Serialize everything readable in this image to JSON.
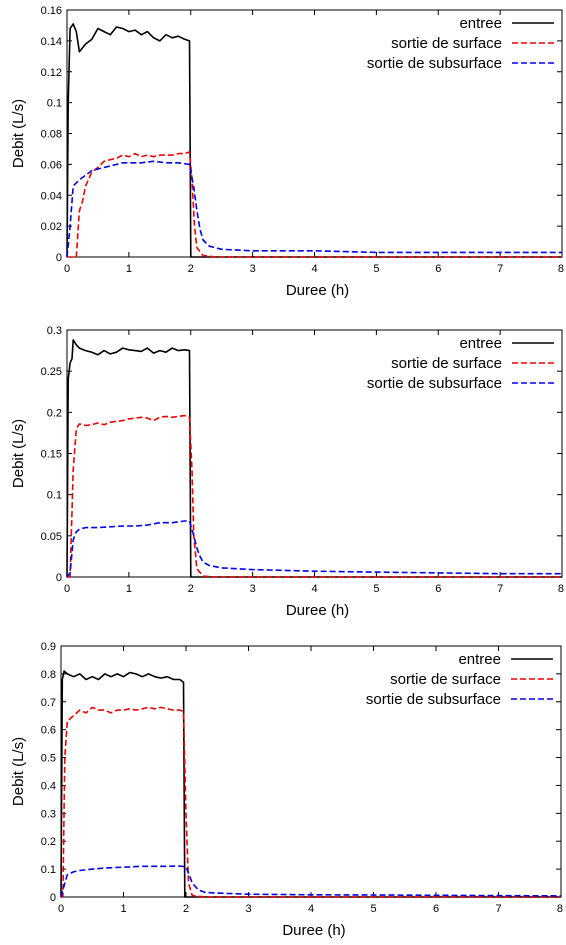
{
  "chart_data": [
    {
      "type": "line",
      "xlabel": "Duree (h)",
      "ylabel": "Debit (L/s)",
      "xlim": [
        0,
        8
      ],
      "ylim": [
        0,
        0.16
      ],
      "xticks": [
        "0",
        "1",
        "2",
        "3",
        "4",
        "5",
        "6",
        "7",
        "8"
      ],
      "yticks": [
        "0",
        "0.02",
        "0.04",
        "0.06",
        "0.08",
        "0.1",
        "0.12",
        "0.14",
        "0.16"
      ],
      "legend_position": "top-right",
      "grid": false,
      "series": [
        {
          "name": "entree",
          "color": "#000000",
          "style": "solid",
          "points": [
            [
              0,
              0
            ],
            [
              0.02,
              0.1
            ],
            [
              0.05,
              0.148
            ],
            [
              0.1,
              0.151
            ],
            [
              0.15,
              0.146
            ],
            [
              0.2,
              0.133
            ],
            [
              0.3,
              0.138
            ],
            [
              0.4,
              0.141
            ],
            [
              0.5,
              0.148
            ],
            [
              0.6,
              0.146
            ],
            [
              0.7,
              0.144
            ],
            [
              0.8,
              0.149
            ],
            [
              0.9,
              0.148
            ],
            [
              1.0,
              0.146
            ],
            [
              1.1,
              0.147
            ],
            [
              1.2,
              0.144
            ],
            [
              1.3,
              0.146
            ],
            [
              1.4,
              0.142
            ],
            [
              1.5,
              0.14
            ],
            [
              1.6,
              0.144
            ],
            [
              1.7,
              0.142
            ],
            [
              1.8,
              0.143
            ],
            [
              1.9,
              0.141
            ],
            [
              1.98,
              0.14
            ],
            [
              2.0,
              0.0
            ],
            [
              8.0,
              0.0
            ]
          ]
        },
        {
          "name": "sortie de surface",
          "color": "#ee0000",
          "style": "dashed",
          "points": [
            [
              0,
              0
            ],
            [
              0.15,
              0.0
            ],
            [
              0.2,
              0.03
            ],
            [
              0.25,
              0.036
            ],
            [
              0.3,
              0.046
            ],
            [
              0.4,
              0.055
            ],
            [
              0.5,
              0.058
            ],
            [
              0.6,
              0.062
            ],
            [
              0.7,
              0.063
            ],
            [
              0.8,
              0.064
            ],
            [
              0.9,
              0.066
            ],
            [
              1.0,
              0.065
            ],
            [
              1.1,
              0.067
            ],
            [
              1.2,
              0.065
            ],
            [
              1.3,
              0.066
            ],
            [
              1.4,
              0.065
            ],
            [
              1.5,
              0.066
            ],
            [
              1.6,
              0.066
            ],
            [
              1.7,
              0.066
            ],
            [
              1.8,
              0.067
            ],
            [
              1.9,
              0.067
            ],
            [
              1.98,
              0.068
            ],
            [
              2.02,
              0.05
            ],
            [
              2.06,
              0.02
            ],
            [
              2.1,
              0.006
            ],
            [
              2.2,
              0.001
            ],
            [
              2.4,
              0.0
            ],
            [
              8.0,
              0.0
            ]
          ]
        },
        {
          "name": "sortie de subsurface",
          "color": "#0000ee",
          "style": "dashed",
          "points": [
            [
              0,
              0
            ],
            [
              0.05,
              0.02
            ],
            [
              0.1,
              0.046
            ],
            [
              0.2,
              0.05
            ],
            [
              0.3,
              0.053
            ],
            [
              0.4,
              0.056
            ],
            [
              0.5,
              0.057
            ],
            [
              0.6,
              0.058
            ],
            [
              0.7,
              0.059
            ],
            [
              0.8,
              0.06
            ],
            [
              0.9,
              0.061
            ],
            [
              1.0,
              0.061
            ],
            [
              1.2,
              0.061
            ],
            [
              1.4,
              0.062
            ],
            [
              1.6,
              0.061
            ],
            [
              1.8,
              0.061
            ],
            [
              1.98,
              0.06
            ],
            [
              2.05,
              0.045
            ],
            [
              2.1,
              0.03
            ],
            [
              2.15,
              0.018
            ],
            [
              2.2,
              0.011
            ],
            [
              2.3,
              0.007
            ],
            [
              2.5,
              0.005
            ],
            [
              3.0,
              0.004
            ],
            [
              4.0,
              0.004
            ],
            [
              5.0,
              0.003
            ],
            [
              6.0,
              0.003
            ],
            [
              7.0,
              0.003
            ],
            [
              8.0,
              0.003
            ]
          ]
        }
      ]
    },
    {
      "type": "line",
      "xlabel": "Duree (h)",
      "ylabel": "Debit (L/s)",
      "xlim": [
        0,
        8
      ],
      "ylim": [
        0,
        0.3
      ],
      "xticks": [
        "0",
        "1",
        "2",
        "3",
        "4",
        "5",
        "6",
        "7",
        "8"
      ],
      "yticks": [
        "0",
        "0.05",
        "0.1",
        "0.15",
        "0.2",
        "0.25",
        "0.3"
      ],
      "legend_position": "top-right",
      "grid": false,
      "series": [
        {
          "name": "entree",
          "color": "#000000",
          "style": "solid",
          "points": [
            [
              0,
              0
            ],
            [
              0.02,
              0.24
            ],
            [
              0.05,
              0.26
            ],
            [
              0.08,
              0.265
            ],
            [
              0.1,
              0.288
            ],
            [
              0.15,
              0.282
            ],
            [
              0.2,
              0.278
            ],
            [
              0.3,
              0.275
            ],
            [
              0.4,
              0.273
            ],
            [
              0.5,
              0.27
            ],
            [
              0.6,
              0.275
            ],
            [
              0.7,
              0.271
            ],
            [
              0.8,
              0.273
            ],
            [
              0.9,
              0.278
            ],
            [
              1.0,
              0.276
            ],
            [
              1.1,
              0.275
            ],
            [
              1.2,
              0.274
            ],
            [
              1.3,
              0.278
            ],
            [
              1.4,
              0.272
            ],
            [
              1.5,
              0.275
            ],
            [
              1.6,
              0.273
            ],
            [
              1.7,
              0.278
            ],
            [
              1.8,
              0.275
            ],
            [
              1.9,
              0.276
            ],
            [
              1.98,
              0.275
            ],
            [
              2.0,
              0.0
            ],
            [
              8.0,
              0.0
            ]
          ]
        },
        {
          "name": "sortie de surface",
          "color": "#ee0000",
          "style": "dashed",
          "points": [
            [
              0,
              0
            ],
            [
              0.05,
              0.0
            ],
            [
              0.1,
              0.13
            ],
            [
              0.15,
              0.18
            ],
            [
              0.2,
              0.186
            ],
            [
              0.3,
              0.184
            ],
            [
              0.4,
              0.185
            ],
            [
              0.5,
              0.187
            ],
            [
              0.6,
              0.185
            ],
            [
              0.7,
              0.188
            ],
            [
              0.8,
              0.189
            ],
            [
              0.9,
              0.19
            ],
            [
              1.0,
              0.192
            ],
            [
              1.1,
              0.193
            ],
            [
              1.2,
              0.194
            ],
            [
              1.3,
              0.193
            ],
            [
              1.4,
              0.19
            ],
            [
              1.5,
              0.194
            ],
            [
              1.6,
              0.195
            ],
            [
              1.7,
              0.194
            ],
            [
              1.8,
              0.195
            ],
            [
              1.9,
              0.196
            ],
            [
              1.98,
              0.194
            ],
            [
              2.02,
              0.13
            ],
            [
              2.05,
              0.05
            ],
            [
              2.1,
              0.01
            ],
            [
              2.2,
              0.001
            ],
            [
              2.4,
              0.0
            ],
            [
              8.0,
              0.0
            ]
          ]
        },
        {
          "name": "sortie de subsurface",
          "color": "#0000ee",
          "style": "dashed",
          "points": [
            [
              0,
              0
            ],
            [
              0.05,
              0.005
            ],
            [
              0.1,
              0.045
            ],
            [
              0.15,
              0.055
            ],
            [
              0.2,
              0.058
            ],
            [
              0.3,
              0.06
            ],
            [
              0.5,
              0.06
            ],
            [
              0.7,
              0.061
            ],
            [
              0.9,
              0.062
            ],
            [
              1.1,
              0.062
            ],
            [
              1.3,
              0.063
            ],
            [
              1.5,
              0.066
            ],
            [
              1.7,
              0.066
            ],
            [
              1.9,
              0.068
            ],
            [
              1.98,
              0.068
            ],
            [
              2.05,
              0.05
            ],
            [
              2.1,
              0.035
            ],
            [
              2.15,
              0.025
            ],
            [
              2.2,
              0.018
            ],
            [
              2.3,
              0.014
            ],
            [
              2.5,
              0.011
            ],
            [
              3.0,
              0.009
            ],
            [
              4.0,
              0.007
            ],
            [
              5.0,
              0.006
            ],
            [
              6.0,
              0.005
            ],
            [
              7.0,
              0.004
            ],
            [
              8.0,
              0.004
            ]
          ]
        }
      ]
    },
    {
      "type": "line",
      "xlabel": "Duree (h)",
      "ylabel": "Debit (L/s)",
      "xlim": [
        0,
        8
      ],
      "ylim": [
        0,
        0.9
      ],
      "xticks": [
        "0",
        "1",
        "2",
        "3",
        "4",
        "5",
        "6",
        "7",
        "8"
      ],
      "yticks": [
        "0",
        "0.1",
        "0.2",
        "0.3",
        "0.4",
        "0.5",
        "0.6",
        "0.7",
        "0.8",
        "0.9"
      ],
      "legend_position": "top-right",
      "grid": false,
      "series": [
        {
          "name": "entree",
          "color": "#000000",
          "style": "solid",
          "points": [
            [
              0,
              0
            ],
            [
              0.02,
              0.78
            ],
            [
              0.05,
              0.81
            ],
            [
              0.1,
              0.8
            ],
            [
              0.2,
              0.79
            ],
            [
              0.3,
              0.8
            ],
            [
              0.4,
              0.78
            ],
            [
              0.5,
              0.79
            ],
            [
              0.6,
              0.78
            ],
            [
              0.7,
              0.8
            ],
            [
              0.8,
              0.79
            ],
            [
              0.9,
              0.8
            ],
            [
              1.0,
              0.79
            ],
            [
              1.1,
              0.805
            ],
            [
              1.2,
              0.8
            ],
            [
              1.3,
              0.79
            ],
            [
              1.4,
              0.8
            ],
            [
              1.5,
              0.79
            ],
            [
              1.6,
              0.785
            ],
            [
              1.7,
              0.79
            ],
            [
              1.8,
              0.78
            ],
            [
              1.9,
              0.78
            ],
            [
              1.96,
              0.77
            ],
            [
              1.98,
              0.0
            ],
            [
              8.0,
              0.0
            ]
          ]
        },
        {
          "name": "sortie de surface",
          "color": "#ee0000",
          "style": "dashed",
          "points": [
            [
              0,
              0
            ],
            [
              0.03,
              0.0
            ],
            [
              0.06,
              0.5
            ],
            [
              0.1,
              0.63
            ],
            [
              0.2,
              0.65
            ],
            [
              0.3,
              0.67
            ],
            [
              0.4,
              0.66
            ],
            [
              0.5,
              0.68
            ],
            [
              0.6,
              0.67
            ],
            [
              0.7,
              0.67
            ],
            [
              0.8,
              0.66
            ],
            [
              0.9,
              0.67
            ],
            [
              1.0,
              0.67
            ],
            [
              1.1,
              0.675
            ],
            [
              1.2,
              0.67
            ],
            [
              1.3,
              0.675
            ],
            [
              1.4,
              0.68
            ],
            [
              1.5,
              0.675
            ],
            [
              1.6,
              0.68
            ],
            [
              1.7,
              0.675
            ],
            [
              1.8,
              0.67
            ],
            [
              1.9,
              0.67
            ],
            [
              1.96,
              0.665
            ],
            [
              2.0,
              0.3
            ],
            [
              2.04,
              0.05
            ],
            [
              2.1,
              0.005
            ],
            [
              2.3,
              0.0
            ],
            [
              8.0,
              0.0
            ]
          ]
        },
        {
          "name": "sortie de subsurface",
          "color": "#0000ee",
          "style": "dashed",
          "points": [
            [
              0,
              0
            ],
            [
              0.05,
              0.04
            ],
            [
              0.1,
              0.08
            ],
            [
              0.2,
              0.09
            ],
            [
              0.3,
              0.095
            ],
            [
              0.5,
              0.1
            ],
            [
              0.7,
              0.104
            ],
            [
              0.9,
              0.106
            ],
            [
              1.1,
              0.108
            ],
            [
              1.3,
              0.11
            ],
            [
              1.5,
              0.11
            ],
            [
              1.7,
              0.11
            ],
            [
              1.9,
              0.111
            ],
            [
              2.0,
              0.108
            ],
            [
              2.05,
              0.08
            ],
            [
              2.1,
              0.05
            ],
            [
              2.2,
              0.025
            ],
            [
              2.3,
              0.017
            ],
            [
              2.5,
              0.014
            ],
            [
              3.0,
              0.01
            ],
            [
              4.0,
              0.008
            ],
            [
              5.0,
              0.007
            ],
            [
              6.0,
              0.006
            ],
            [
              7.0,
              0.005
            ],
            [
              8.0,
              0.004
            ]
          ]
        }
      ]
    }
  ]
}
